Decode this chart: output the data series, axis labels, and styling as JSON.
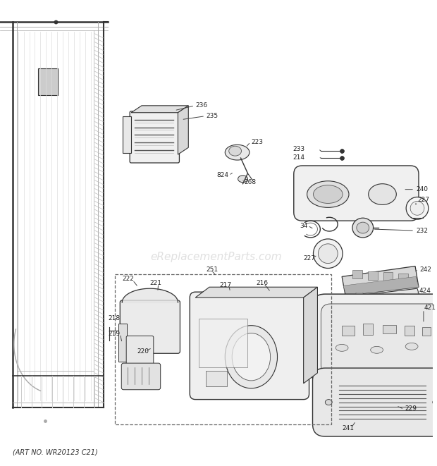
{
  "bottom_text": "(ART NO. WR20123 C21)",
  "watermark": "eReplacementParts.com",
  "bg_color": "#ffffff",
  "gray": "#555555",
  "dgray": "#333333",
  "lgray": "#aaaaaa",
  "label_fs": 6.5,
  "fig_w": 6.2,
  "fig_h": 6.61,
  "dpi": 100
}
